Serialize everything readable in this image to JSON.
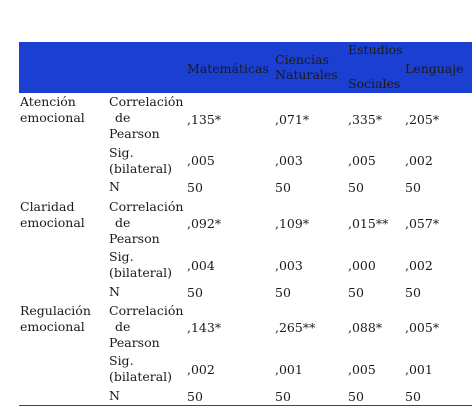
{
  "header": {
    "cols": [
      "Matemáticas",
      "Ciencias Naturales",
      "Estudios Sociales",
      "Lenguaje"
    ],
    "col2_lines": [
      "Ciencias",
      "Naturales"
    ],
    "col3_lines": [
      "Estudios",
      "Sociales"
    ]
  },
  "stat_labels": {
    "corr_lines": [
      "Correlación",
      "de",
      "Pearson"
    ],
    "sig_lines": [
      "Sig.",
      "(bilateral)"
    ],
    "n": "N"
  },
  "groups": [
    {
      "name_lines": [
        "Atención",
        "emocional"
      ],
      "corr": [
        ",135*",
        ",071*",
        ",335*",
        ",205*"
      ],
      "sig": [
        ",005",
        ",003",
        ",005",
        ",002"
      ],
      "n": [
        "50",
        "50",
        "50",
        "50"
      ]
    },
    {
      "name_lines": [
        "Claridad",
        "emocional"
      ],
      "corr": [
        ",092*",
        ",109*",
        ",015**",
        ",057*"
      ],
      "sig": [
        ",004",
        ",003",
        ",000",
        ",002"
      ],
      "n": [
        "50",
        "50",
        "50",
        "50"
      ]
    },
    {
      "name_lines": [
        "Regulación",
        "emocional"
      ],
      "corr": [
        ",143*",
        ",265**",
        ",088*",
        ",005*"
      ],
      "sig": [
        ",002",
        ",001",
        ",005",
        ",001"
      ],
      "n": [
        "50",
        "50",
        "50",
        "50"
      ]
    }
  ]
}
